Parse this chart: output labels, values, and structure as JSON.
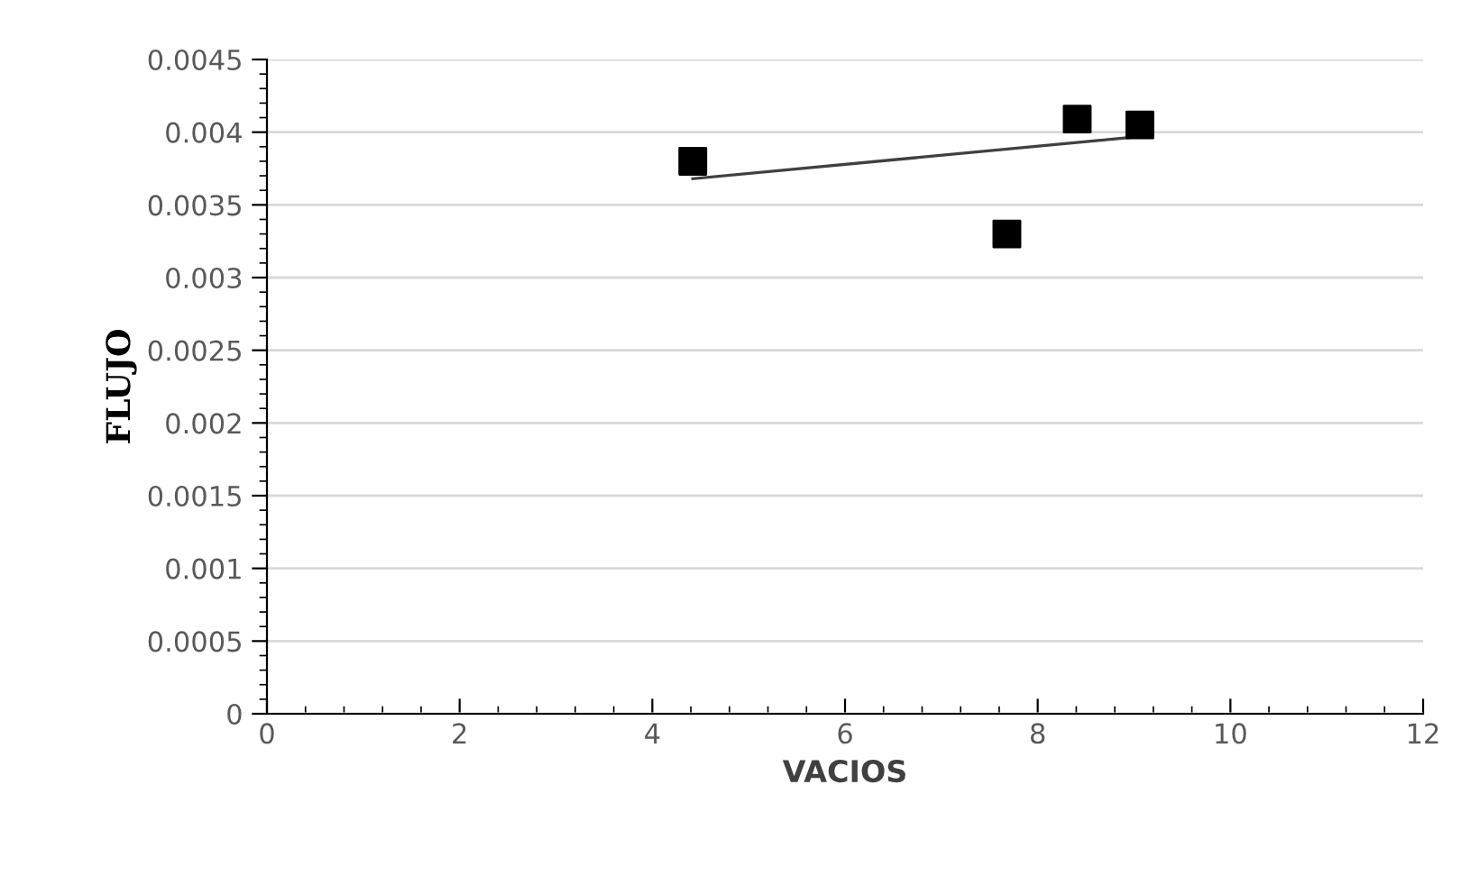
{
  "chart_data": {
    "type": "scatter",
    "xlabel": "VACIOS",
    "ylabel": "FLUJO",
    "xlim": [
      0,
      12
    ],
    "xticks": [
      0,
      2,
      4,
      6,
      8,
      10,
      12
    ],
    "ylim": [
      0,
      0.0045
    ],
    "yticks": [
      0,
      0.0005,
      0.001,
      0.0015,
      0.002,
      0.0025,
      0.003,
      0.0035,
      0.004,
      0.0045
    ],
    "grid": "y",
    "marker": "square",
    "series": [
      {
        "color": "#000000",
        "x": [
          4.42,
          7.68,
          8.41,
          9.06
        ],
        "values": [
          0.0038,
          0.0033,
          0.00409,
          0.00405
        ]
      },
      {
        "type": "line",
        "color": "#404040",
        "x": [
          4.42,
          9.06
        ],
        "values": [
          0.00368,
          0.00397
        ],
        "marker": "none"
      }
    ]
  }
}
